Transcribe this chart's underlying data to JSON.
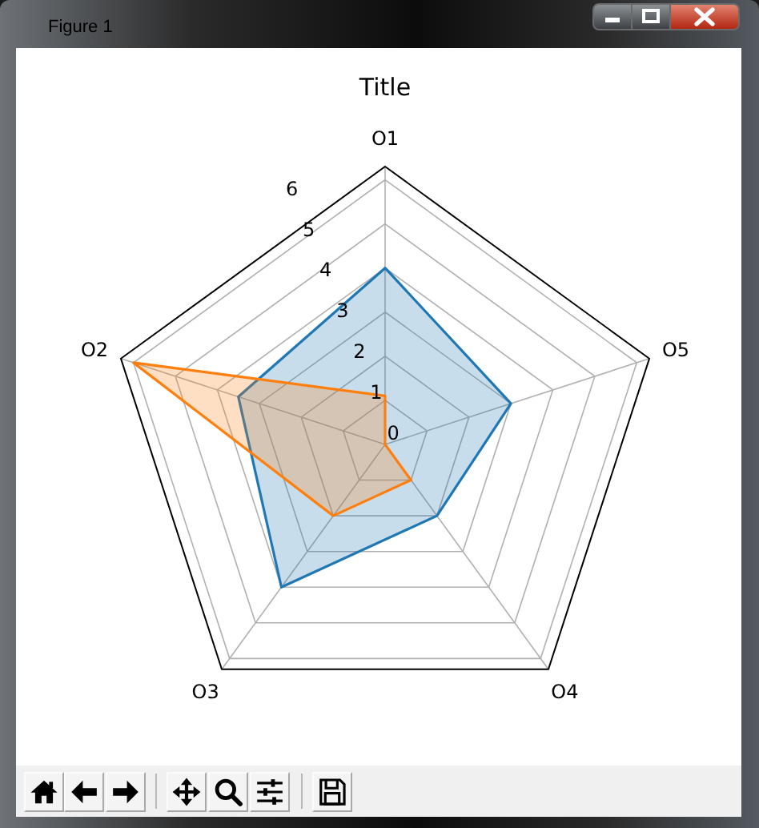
{
  "chart_data": {
    "type": "radar",
    "title": "Title",
    "annotations": [
      "Figure 1"
    ],
    "categories": [
      "O1",
      "O5",
      "O4",
      "O3",
      "O2"
    ],
    "series": [
      {
        "color": "#1f77b4",
        "values": [
          4,
          3,
          2,
          4,
          3.5
        ]
      },
      {
        "color": "#ff7f0e",
        "values": [
          1.1,
          0,
          1,
          2,
          6
        ]
      }
    ],
    "ylim": [
      0,
      6.3
    ],
    "yticks": [
      0,
      1,
      2,
      3,
      4,
      5,
      6
    ],
    "grid": true
  }
}
